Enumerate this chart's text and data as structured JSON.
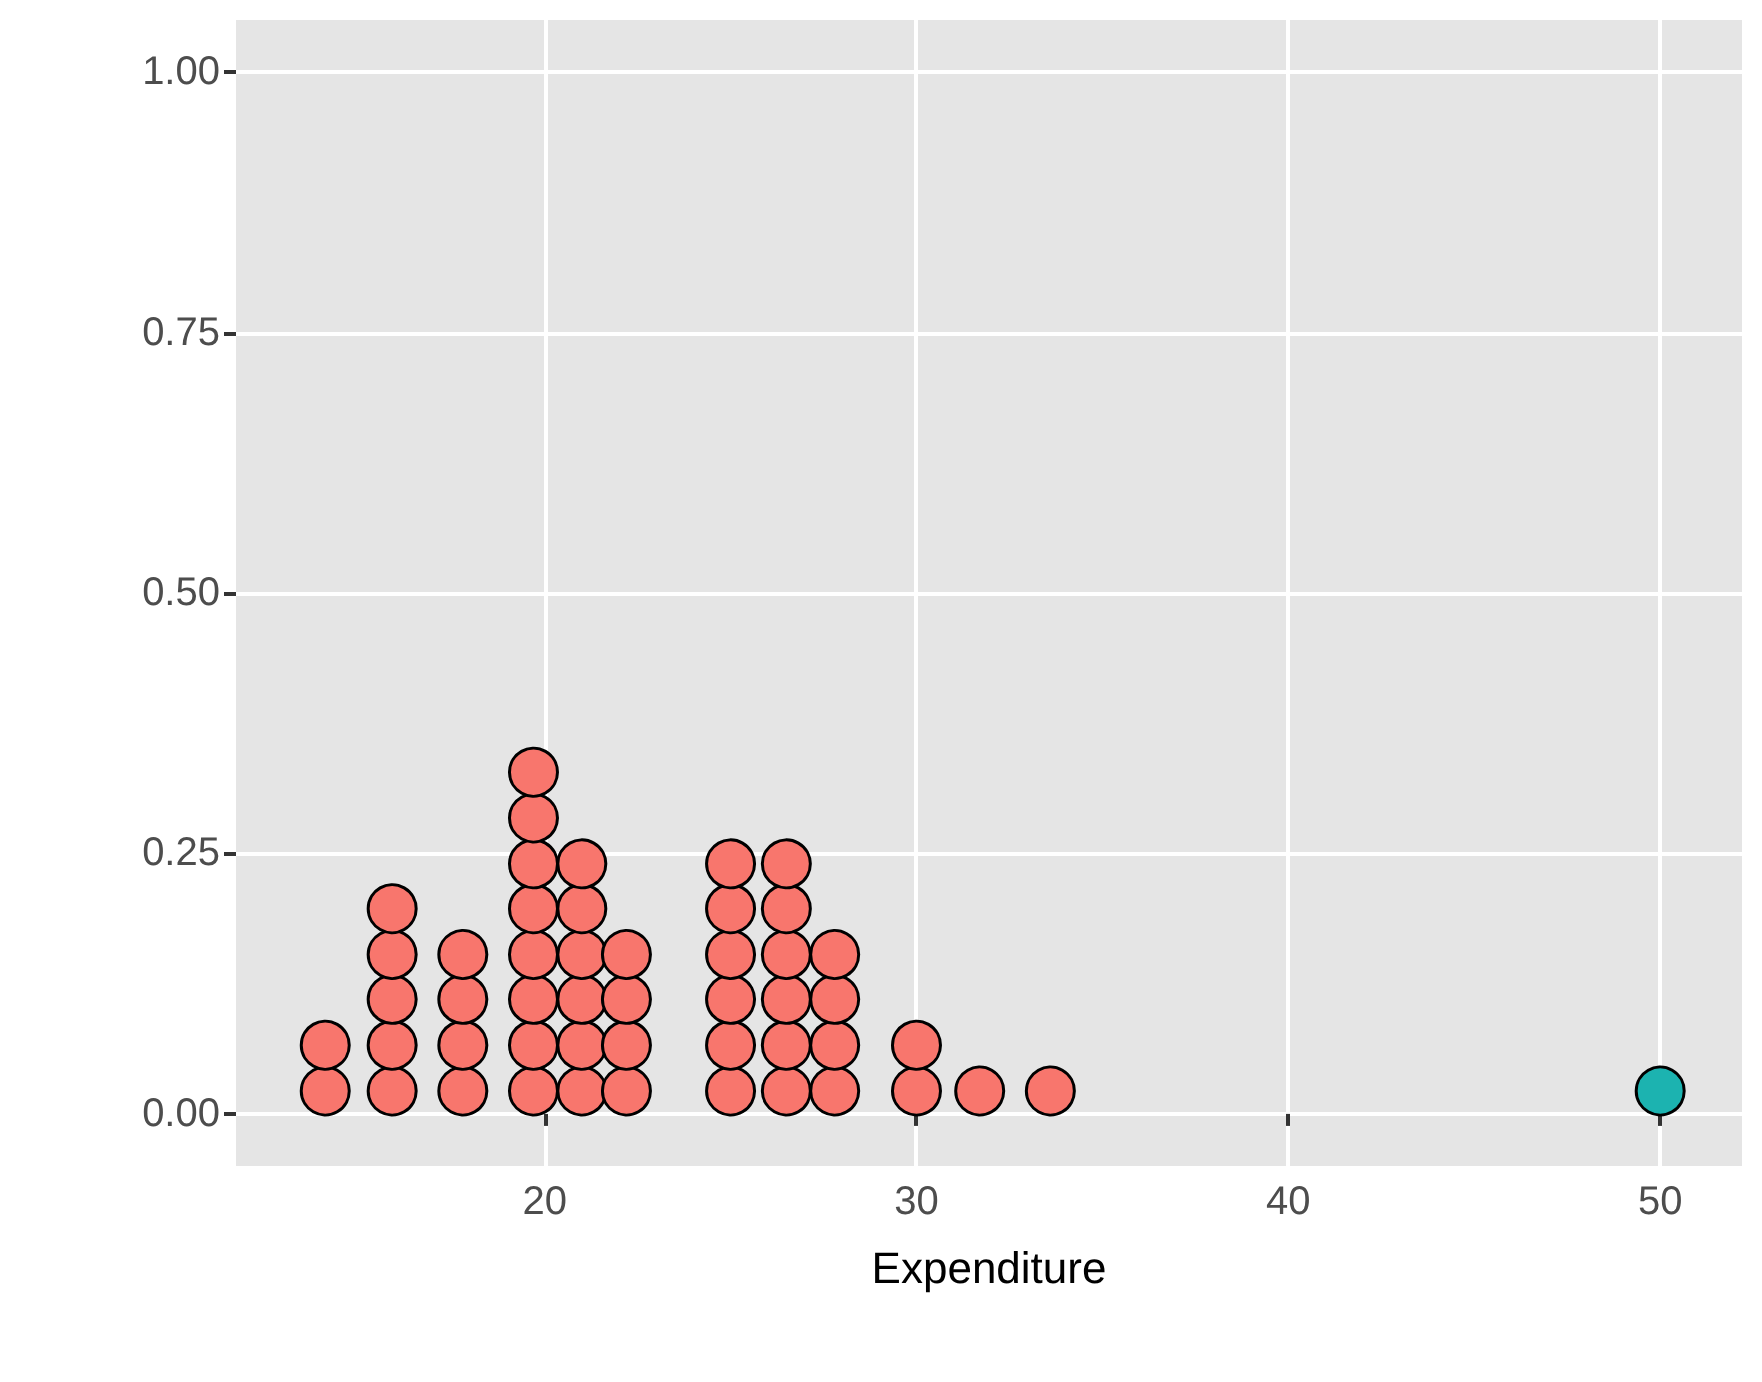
{
  "chart_data": {
    "type": "scatter",
    "xlabel": "Expenditure",
    "series": [
      {
        "color": "#f8766d",
        "x": [
          14.1,
          14.1,
          15.9,
          15.9,
          15.9,
          15.9,
          15.9,
          17.8,
          17.8,
          17.8,
          17.8,
          19.7,
          19.7,
          19.7,
          19.7,
          19.7,
          19.7,
          19.7,
          19.7,
          21.0,
          21.0,
          21.0,
          21.0,
          21.0,
          21.0,
          22.2,
          22.2,
          22.2,
          22.2,
          25.0,
          25.0,
          25.0,
          25.0,
          25.0,
          25.0,
          26.5,
          26.5,
          26.5,
          26.5,
          26.5,
          26.5,
          27.8,
          27.8,
          27.8,
          27.8,
          30.0,
          30.0,
          31.7,
          33.6
        ],
        "values": [
          0.022,
          0.066,
          0.022,
          0.066,
          0.11,
          0.153,
          0.197,
          0.022,
          0.066,
          0.11,
          0.153,
          0.022,
          0.066,
          0.11,
          0.153,
          0.197,
          0.24,
          0.284,
          0.328,
          0.022,
          0.066,
          0.11,
          0.153,
          0.197,
          0.24,
          0.022,
          0.066,
          0.11,
          0.153,
          0.022,
          0.066,
          0.11,
          0.153,
          0.197,
          0.24,
          0.022,
          0.066,
          0.11,
          0.153,
          0.197,
          0.24,
          0.022,
          0.066,
          0.11,
          0.153,
          0.022,
          0.066,
          0.022,
          0.022
        ]
      },
      {
        "color": "#1cb3b0",
        "x": [
          50
        ],
        "values": [
          0.022
        ]
      }
    ],
    "xlim": [
      11.7,
      52.2
    ],
    "xticks": [
      20,
      30,
      40,
      50
    ],
    "ylim": [
      -0.05,
      1.05
    ],
    "yticks": [
      {
        "value": 0,
        "label": "0.00"
      },
      {
        "value": 0.25,
        "label": "0.25"
      },
      {
        "value": 0.5,
        "label": "0.50"
      },
      {
        "value": 0.75,
        "label": "0.75"
      },
      {
        "value": 1,
        "label": "1.00"
      }
    ],
    "grid": true,
    "marker": "circle"
  }
}
